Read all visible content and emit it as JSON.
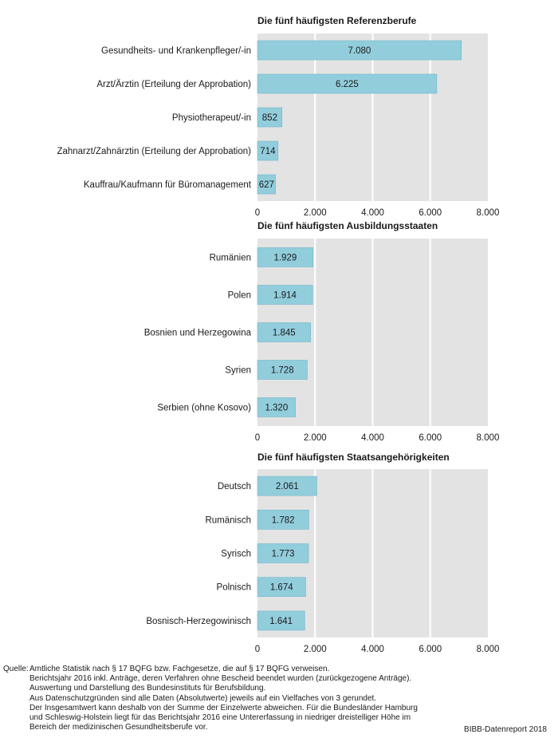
{
  "chart_data": [
    {
      "type": "bar",
      "orientation": "horizontal",
      "title": "Die fünf häufigsten Referenzberufe",
      "categories": [
        "Gesundheits- und Krankenpfleger/-in",
        "Arzt/Ärztin (Erteilung der Approbation)",
        "Physiotherapeut/-in",
        "Zahnarzt/Zahnärztin (Erteilung der Approbation)",
        "Kauffrau/Kaufmann für Büromanagement"
      ],
      "values": [
        7080,
        6225,
        852,
        714,
        627
      ],
      "value_labels": [
        "7.080",
        "6.225",
        "852",
        "714",
        "627"
      ],
      "xlim": [
        0,
        8000
      ],
      "ticks": [
        0,
        2000,
        4000,
        6000,
        8000
      ],
      "tick_labels": [
        "0",
        "2.000",
        "4.000",
        "6.000",
        "8.000"
      ],
      "grid": true
    },
    {
      "type": "bar",
      "orientation": "horizontal",
      "title": "Die fünf häufigsten Ausbildungsstaaten",
      "categories": [
        "Rumänien",
        "Polen",
        "Bosnien und Herzegowina",
        "Syrien",
        "Serbien (ohne Kosovo)"
      ],
      "values": [
        1929,
        1914,
        1845,
        1728,
        1320
      ],
      "value_labels": [
        "1.929",
        "1.914",
        "1.845",
        "1.728",
        "1.320"
      ],
      "xlim": [
        0,
        8000
      ],
      "ticks": [
        0,
        2000,
        4000,
        6000,
        8000
      ],
      "tick_labels": [
        "0",
        "2.000",
        "4.000",
        "6.000",
        "8.000"
      ],
      "grid": true
    },
    {
      "type": "bar",
      "orientation": "horizontal",
      "title": "Die fünf häufigsten Staatsangehörigkeiten",
      "categories": [
        "Deutsch",
        "Rumänisch",
        "Syrisch",
        "Polnisch",
        "Bosnisch-Herzegowinisch"
      ],
      "values": [
        2061,
        1782,
        1773,
        1674,
        1641
      ],
      "value_labels": [
        "2.061",
        "1.782",
        "1.773",
        "1.674",
        "1.641"
      ],
      "xlim": [
        0,
        8000
      ],
      "ticks": [
        0,
        2000,
        4000,
        6000,
        8000
      ],
      "tick_labels": [
        "0",
        "2.000",
        "4.000",
        "6.000",
        "8.000"
      ],
      "grid": true
    }
  ],
  "colors": {
    "bar": "#92cddc",
    "bar_stroke": "#6fb6c8",
    "panel": "#e3e3e3",
    "grid": "#ffffff"
  },
  "source": {
    "label": "Quelle:",
    "lines": [
      "Amtliche Statistik nach § 17 BQFG bzw. Fachgesetze, die auf § 17 BQFG verweisen.",
      "Berichtsjahr 2016 inkl. Anträge, deren Verfahren ohne Bescheid beendet wurden (zurückgezogene Anträge).",
      "Auswertung und Darstellung des Bundesinstituts für Berufsbildung.",
      "Aus Datenschutzgründen sind alle Daten (Absolutwerte) jeweils auf ein Vielfaches von 3 gerundet.",
      "Der Insgesamtwert kann deshalb von der Summe der Einzelwerte abweichen. Für die Bundesländer Hamburg",
      "und Schleswig-Holstein liegt für das Berichtsjahr 2016 eine Untererfassung in niedriger dreistelliger Höhe im",
      "Bereich der medizinischen Gesundheitsberufe vor."
    ]
  },
  "brand": "BIBB-Datenreport 2018"
}
